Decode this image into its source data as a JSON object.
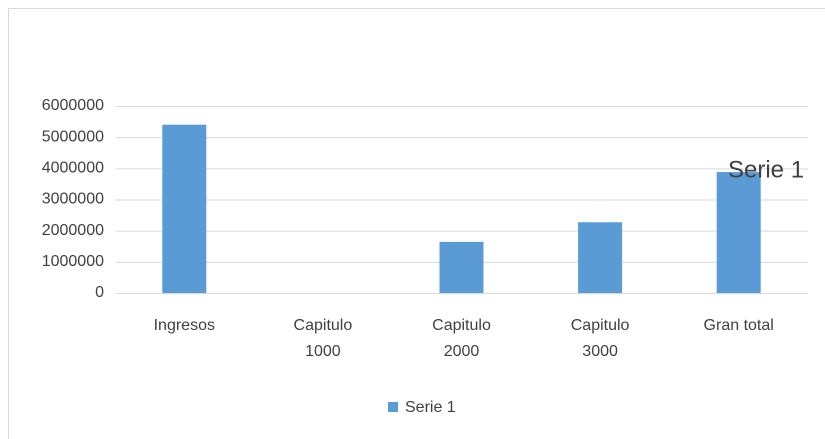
{
  "chart_data": {
    "type": "bar",
    "title": "Serie 1",
    "categories": [
      "Ingresos",
      "Capitulo 1000",
      "Capitulo 2000",
      "Capitulo 3000",
      "Gran total"
    ],
    "series": [
      {
        "name": "Serie 1",
        "color": "#5b9bd5",
        "values": [
          5400000,
          0,
          1640000,
          2270000,
          3880000
        ]
      }
    ],
    "ylim": [
      0,
      6000000
    ],
    "yticks": [
      0,
      1000000,
      2000000,
      3000000,
      4000000,
      5000000,
      6000000
    ],
    "grid": true,
    "legend": "bottom"
  }
}
